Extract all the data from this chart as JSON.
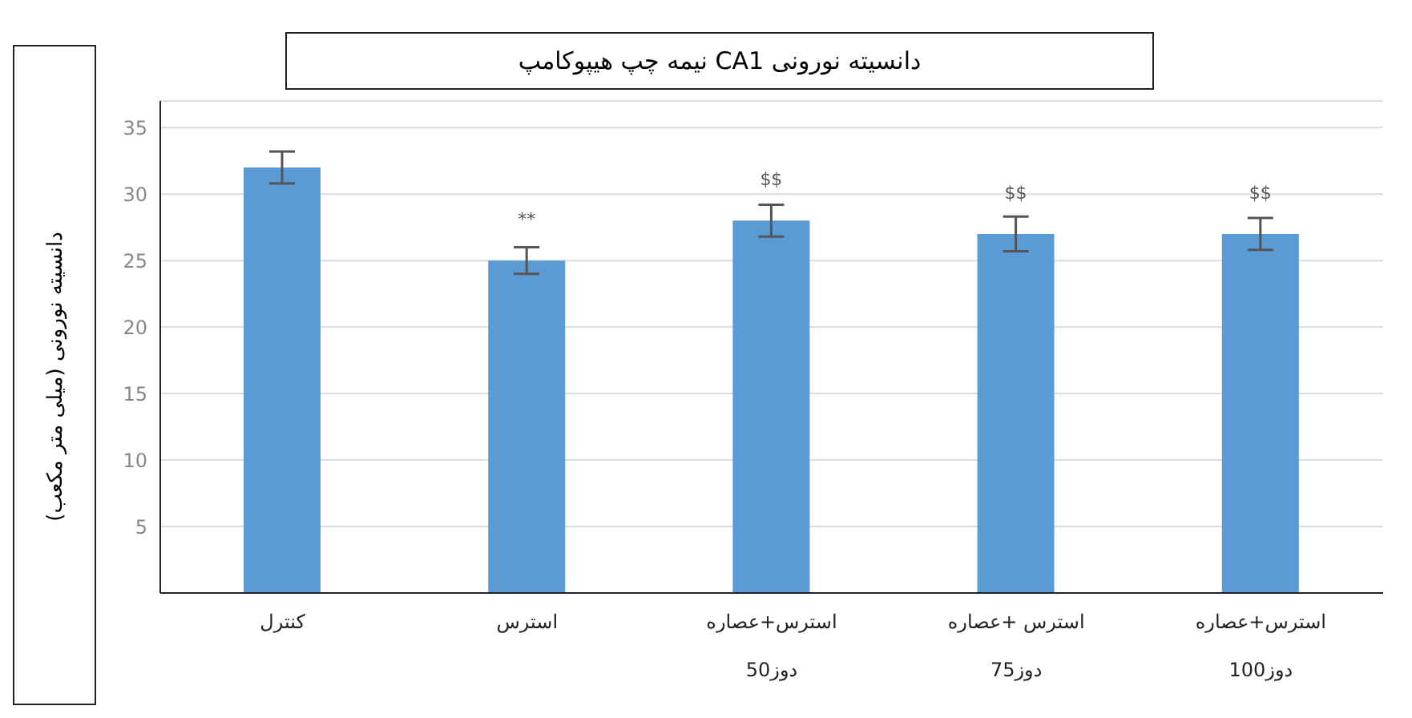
{
  "chart_data": {
    "type": "bar",
    "title": "دانسیته نورونی CA1 نیمه چپ هیپوکامپ",
    "ylabel": "دانسیته نورونی (میلی متر مکعب)",
    "categories": [
      "کنترل",
      "استرس",
      "استرس+عصاره دوز50",
      "استرس +عصاره دوز75",
      "استرس+عصاره دوز100"
    ],
    "values": [
      32,
      25,
      28,
      27,
      27
    ],
    "errors": [
      1.2,
      1,
      1.2,
      1.3,
      1.2
    ],
    "value_labels": [
      null,
      "**",
      "$$",
      "$$",
      "$$"
    ],
    "color": "#5b9bd5",
    "ylim": [
      0,
      37
    ],
    "yticks": [
      5,
      10,
      15,
      20,
      25,
      30,
      35
    ],
    "grid": "y"
  }
}
